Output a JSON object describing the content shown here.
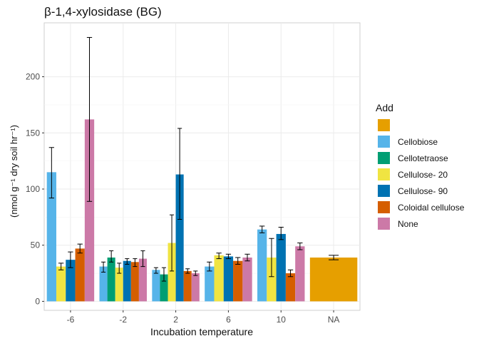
{
  "chart_data": {
    "type": "bar",
    "title": "β-1,4-xylosidase (BG)",
    "xlabel": "Incubation temperature",
    "ylabel": "(nmol g⁻¹ dry soil hr⁻¹)",
    "categories": [
      "-6",
      "-2",
      "2",
      "6",
      "10",
      "NA"
    ],
    "ylim": [
      -8,
      248
    ],
    "yticks": [
      0,
      50,
      100,
      150,
      200
    ],
    "grid": true,
    "legend": {
      "title": "Add",
      "position": "right"
    },
    "series": [
      {
        "name": "",
        "color": "#E69F00",
        "values": [
          null,
          null,
          null,
          null,
          null,
          39
        ],
        "err_low": [
          null,
          null,
          null,
          null,
          null,
          37
        ],
        "err_high": [
          null,
          null,
          null,
          null,
          null,
          41
        ]
      },
      {
        "name": "Cellobiose",
        "color": "#56B4E9",
        "values": [
          115,
          31,
          28,
          31,
          64,
          null
        ],
        "err_low": [
          92,
          26,
          25,
          27,
          61,
          null
        ],
        "err_high": [
          137,
          35,
          30,
          35,
          67,
          null
        ]
      },
      {
        "name": "Cellotetraose",
        "color": "#009E73",
        "values": [
          null,
          39,
          24,
          null,
          null,
          null
        ],
        "err_low": [
          null,
          35,
          18,
          null,
          null,
          null
        ],
        "err_high": [
          null,
          45,
          30,
          null,
          null,
          null
        ]
      },
      {
        "name": "Cellulose- 20",
        "color": "#F0E442",
        "values": [
          31,
          30,
          52,
          41,
          39,
          null
        ],
        "err_low": [
          28,
          25,
          27,
          38,
          22,
          null
        ],
        "err_high": [
          34,
          34,
          77,
          43,
          56,
          null
        ]
      },
      {
        "name": "Cellulose- 90",
        "color": "#0072B2",
        "values": [
          37,
          36,
          113,
          40,
          60,
          null
        ],
        "err_low": [
          30,
          33,
          73,
          38,
          55,
          null
        ],
        "err_high": [
          44,
          38,
          154,
          42,
          66,
          null
        ]
      },
      {
        "name": "Coloidal cellulose",
        "color": "#D55E00",
        "values": [
          47,
          35,
          27,
          36,
          25,
          null
        ],
        "err_low": [
          43,
          31,
          25,
          33,
          22,
          null
        ],
        "err_high": [
          51,
          38,
          29,
          39,
          28,
          null
        ]
      },
      {
        "name": "None",
        "color": "#CC79A7",
        "values": [
          162,
          38,
          25,
          39,
          49,
          null
        ],
        "err_low": [
          89,
          31,
          23,
          36,
          46,
          null
        ],
        "err_high": [
          235,
          45,
          27,
          42,
          52,
          null
        ]
      }
    ]
  }
}
